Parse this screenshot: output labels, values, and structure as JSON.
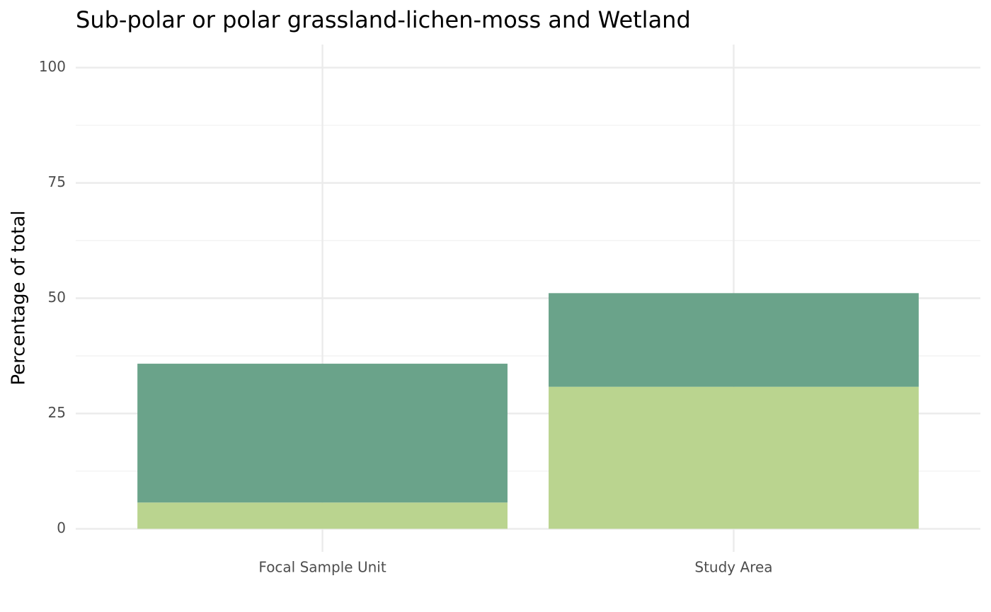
{
  "chart_data": {
    "type": "stacked-bar",
    "title": "Sub-polar or polar grassland-lichen-moss and Wetland",
    "y_label": "Percentage of total",
    "categories": [
      "Focal Sample Unit",
      "Study Area"
    ],
    "series": [
      {
        "color": "#bad48f",
        "values": [
          5.7,
          30.8
        ]
      },
      {
        "color": "#6aa38a",
        "values": [
          30.1,
          20.3
        ]
      }
    ],
    "ylim": [
      -5,
      105
    ],
    "yticks": [
      0,
      25,
      50,
      75,
      100
    ],
    "yminor": [
      12.5,
      37.5,
      62.5,
      87.5
    ],
    "grid": true
  }
}
